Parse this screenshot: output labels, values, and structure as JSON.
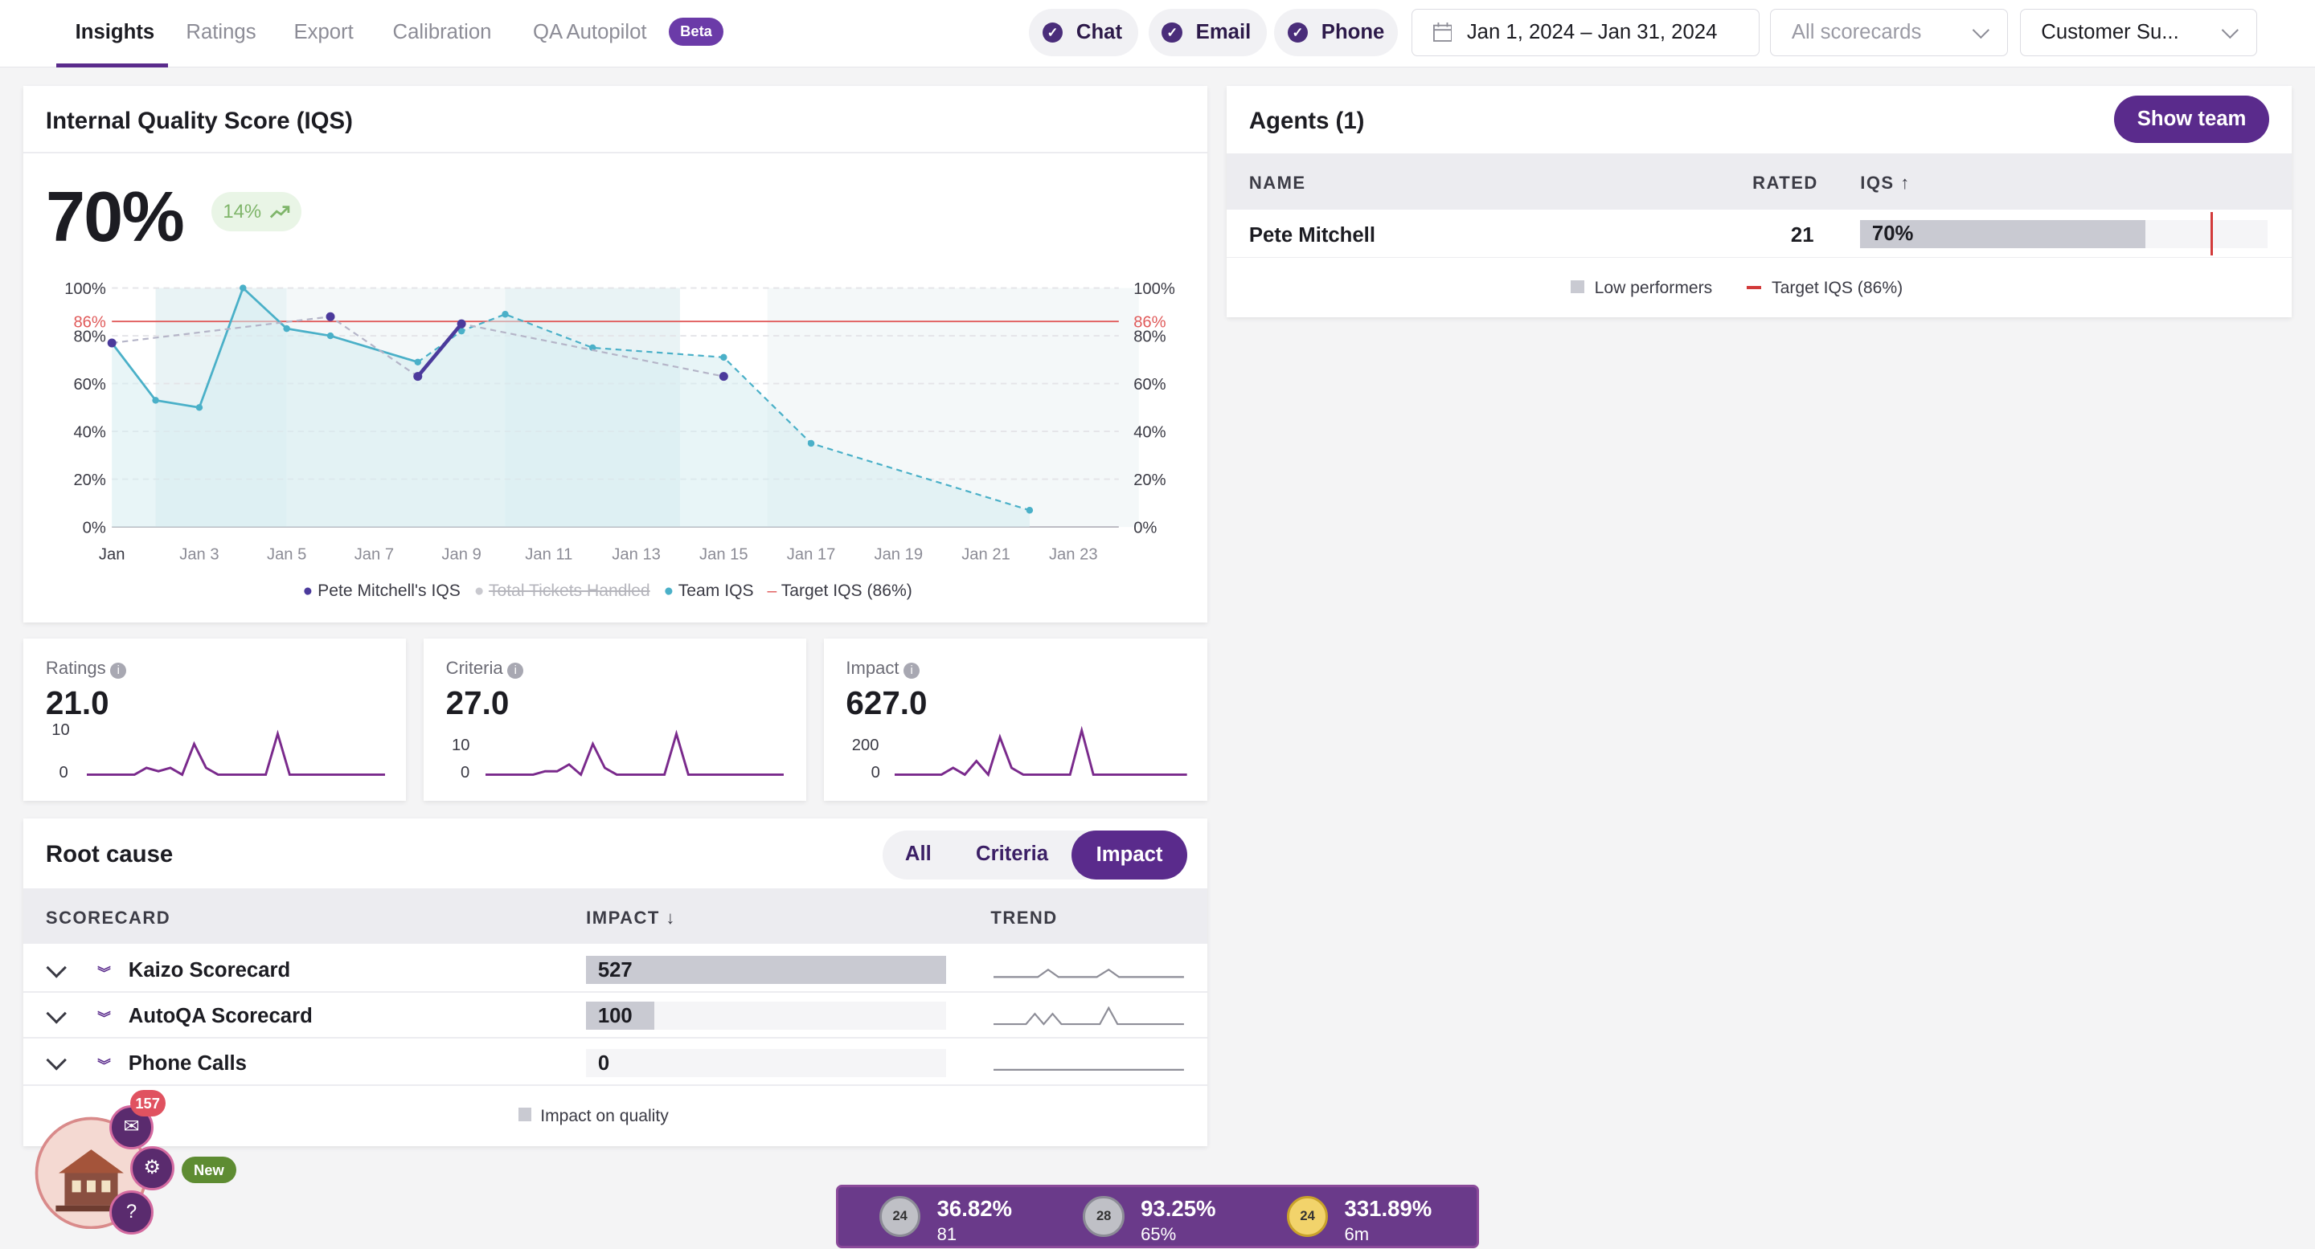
{
  "nav": {
    "tabs": [
      "Insights",
      "Ratings",
      "Export",
      "Calibration",
      "QA Autopilot"
    ],
    "beta_label": "Beta"
  },
  "filters": {
    "channels": [
      "Chat",
      "Email",
      "Phone"
    ],
    "date_range": "Jan 1, 2024 – Jan 31, 2024",
    "scorecard_placeholder": "All scorecards",
    "workspace": "Customer Su..."
  },
  "iqs": {
    "title": "Internal Quality Score (IQS)",
    "value": "70%",
    "delta": "14%",
    "target_label": "86%",
    "y_ticks": [
      "100%",
      "80%",
      "60%",
      "40%",
      "20%",
      "0%"
    ],
    "x_ticks": [
      "Jan",
      "Jan 3",
      "Jan 5",
      "Jan 7",
      "Jan 9",
      "Jan 11",
      "Jan 13",
      "Jan 15",
      "Jan 17",
      "Jan 19",
      "Jan 21",
      "Jan 23"
    ],
    "legend": {
      "pete": "Pete Mitchell's IQS",
      "tickets": "Total Tickets Handled",
      "team": "Team IQS",
      "target": "Target IQS (86%)"
    }
  },
  "chart_data": {
    "type": "line",
    "x": [
      "Jan 1",
      "Jan 2",
      "Jan 3",
      "Jan 4",
      "Jan 5",
      "Jan 6",
      "Jan 8",
      "Jan 9",
      "Jan 10",
      "Jan 12",
      "Jan 15",
      "Jan 17",
      "Jan 22"
    ],
    "ylim": [
      0,
      100
    ],
    "target": 86,
    "series": [
      {
        "name": "Team IQS",
        "x": [
          "Jan 1",
          "Jan 2",
          "Jan 3",
          "Jan 4",
          "Jan 5",
          "Jan 6",
          "Jan 8",
          "Jan 9",
          "Jan 10",
          "Jan 12",
          "Jan 15",
          "Jan 17",
          "Jan 22"
        ],
        "values": [
          77,
          53,
          50,
          100,
          83,
          80,
          69,
          82,
          89,
          75,
          71,
          35,
          7
        ]
      },
      {
        "name": "Pete Mitchell's IQS",
        "x": [
          "Jan 1",
          "Jan 6",
          "Jan 8",
          "Jan 9",
          "Jan 15"
        ],
        "values": [
          77,
          88,
          63,
          85,
          63
        ]
      }
    ]
  },
  "metrics": [
    {
      "label": "Ratings",
      "value": "21.0",
      "top": "10",
      "bottom": "0",
      "spark": [
        0,
        0,
        0,
        0,
        0,
        0.2,
        0.1,
        0.2,
        0,
        0.9,
        0.2,
        0,
        0,
        0,
        0,
        0,
        1.2,
        0,
        0,
        0,
        0,
        0,
        0,
        0,
        0,
        0
      ]
    },
    {
      "label": "Criteria",
      "value": "27.0",
      "top": "10",
      "bottom": "0",
      "spark": [
        0,
        0,
        0,
        0,
        0,
        0.1,
        0.1,
        0.3,
        0,
        0.9,
        0.2,
        0,
        0,
        0,
        0,
        0,
        1.2,
        0,
        0,
        0,
        0,
        0,
        0,
        0,
        0,
        0
      ]
    },
    {
      "label": "Impact",
      "value": "627.0",
      "top": "200",
      "bottom": "0",
      "spark": [
        0,
        0,
        0,
        0,
        0,
        0.2,
        0,
        0.4,
        0,
        1.1,
        0.2,
        0,
        0,
        0,
        0,
        0,
        1.3,
        0,
        0,
        0,
        0,
        0,
        0,
        0,
        0,
        0
      ]
    }
  ],
  "root_cause": {
    "title": "Root cause",
    "segments": [
      "All",
      "Criteria",
      "Impact"
    ],
    "headers": {
      "scorecard": "SCORECARD",
      "impact": "IMPACT",
      "trend": "TREND"
    },
    "rows": [
      {
        "name": "Kaizo Scorecard",
        "impact": "527",
        "fraction": 1.0
      },
      {
        "name": "AutoQA Scorecard",
        "impact": "100",
        "fraction": 0.19
      },
      {
        "name": "Phone Calls",
        "impact": "0",
        "fraction": 0
      }
    ],
    "legend": "Impact on quality"
  },
  "agents": {
    "title": "Agents (1)",
    "show_team": "Show team",
    "headers": {
      "name": "NAME",
      "rated": "RATED",
      "iqs": "IQS"
    },
    "rows": [
      {
        "name": "Pete Mitchell",
        "rated": "21",
        "iqs": "70%",
        "fraction": 0.7
      }
    ],
    "target_fraction": 0.86,
    "legend_low": "Low performers",
    "legend_target": "Target IQS (86%)"
  },
  "widget": {
    "badge": "157",
    "new_label": "New"
  },
  "game": [
    {
      "rank": "24",
      "pct": "36.82%",
      "sub": "81"
    },
    {
      "rank": "28",
      "pct": "93.25%",
      "sub": "65%"
    },
    {
      "rank": "24",
      "pct": "331.89%",
      "sub": "6m"
    }
  ]
}
